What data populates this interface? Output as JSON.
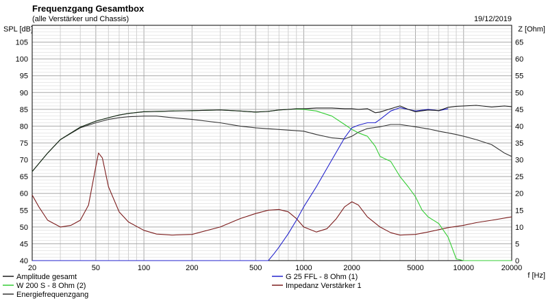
{
  "header": {
    "title": "Frequenzgang Gesamtbox",
    "subtitle": "(alle Verstärker und Chassis)",
    "date": "19/12/2019"
  },
  "chart_data": {
    "type": "line",
    "title": "Frequenzgang Gesamtbox",
    "xlabel": "f [Hz]",
    "ylabel_left": "SPL [dB]",
    "ylabel_right": "Z [Ohm]",
    "xscale": "log",
    "xlim": [
      20,
      20000
    ],
    "ylim_left": [
      40,
      110
    ],
    "ylim_right": [
      0,
      70
    ],
    "grid": true,
    "x_ticks": [
      "20",
      "50",
      "100",
      "200",
      "500",
      "1000",
      "2000",
      "5000",
      "10000",
      "20000"
    ],
    "y_left_ticks": [
      "105",
      "100",
      "95",
      "90",
      "85",
      "80",
      "75",
      "70",
      "65",
      "60",
      "55",
      "50",
      "45",
      "40"
    ],
    "y_right_ticks": [
      "65",
      "60",
      "55",
      "50",
      "45",
      "40",
      "35",
      "30",
      "25",
      "20",
      "15",
      "10",
      "5",
      "0"
    ],
    "colors": {
      "amplitude": "#1a1a1a",
      "woofer": "#33cc33",
      "energy": "#333333",
      "tweeter": "#2222cc",
      "impedance": "#7a1a1a",
      "grid": "#d0d0d0",
      "grid_major": "#a8a8a8"
    },
    "series": [
      {
        "key": "amplitude",
        "name": "Amplitude gesamt",
        "axis": "left",
        "x": [
          20,
          25,
          30,
          40,
          50,
          60,
          70,
          80,
          100,
          150,
          200,
          300,
          400,
          500,
          600,
          700,
          800,
          900,
          1000,
          1200,
          1500,
          1800,
          2000,
          2200,
          2500,
          2800,
          3000,
          3500,
          4000,
          4500,
          5000,
          6000,
          7000,
          8000,
          9000,
          10000,
          12000,
          15000,
          18000,
          20000
        ],
        "y": [
          66.5,
          72.0,
          76.0,
          79.7,
          81.5,
          82.5,
          83.3,
          83.8,
          84.3,
          84.5,
          84.6,
          84.8,
          84.5,
          84.2,
          84.4,
          84.8,
          85.0,
          85.2,
          85.2,
          85.4,
          85.4,
          85.2,
          85.2,
          85.0,
          85.2,
          84.0,
          84.2,
          85.2,
          86.0,
          85.0,
          84.3,
          84.8,
          84.6,
          85.6,
          85.9,
          86.0,
          86.2,
          85.7,
          86.0,
          85.8
        ]
      },
      {
        "key": "woofer",
        "name": "W 200 S - 8 Ohm (2)",
        "axis": "left",
        "x": [
          20,
          25,
          30,
          40,
          50,
          60,
          70,
          80,
          100,
          150,
          200,
          300,
          400,
          500,
          600,
          700,
          800,
          900,
          1000,
          1200,
          1500,
          1800,
          2000,
          2200,
          2500,
          2800,
          3000,
          3500,
          4000,
          4500,
          5000,
          5500,
          6000,
          7000,
          8000,
          9000,
          10000,
          12000,
          15000,
          20000
        ],
        "y": [
          66.5,
          72.0,
          76.0,
          79.7,
          81.5,
          82.5,
          83.3,
          83.8,
          84.3,
          84.5,
          84.6,
          84.8,
          84.5,
          84.2,
          84.4,
          84.8,
          85.0,
          85.1,
          85.0,
          84.5,
          83.0,
          80.5,
          79.0,
          78.0,
          77.0,
          74.0,
          71.0,
          69.5,
          65.0,
          62.0,
          59.0,
          55.0,
          53.0,
          51.0,
          47.0,
          40.5,
          40.0,
          40.0,
          40.0,
          40.0
        ]
      },
      {
        "key": "energy",
        "name": "Energiefrequenzgang",
        "axis": "left",
        "x": [
          20,
          25,
          30,
          40,
          50,
          60,
          70,
          80,
          100,
          120,
          150,
          200,
          300,
          400,
          500,
          700,
          1000,
          1200,
          1500,
          1800,
          2000,
          2200,
          2500,
          3000,
          3500,
          4000,
          5000,
          6000,
          7000,
          8000,
          9000,
          10000,
          12000,
          15000,
          18000,
          20000
        ],
        "y": [
          66.5,
          72.0,
          76.0,
          79.5,
          81.0,
          82.0,
          82.5,
          82.8,
          83.0,
          83.0,
          82.5,
          82.0,
          81.0,
          80.0,
          79.5,
          79.0,
          78.5,
          77.5,
          76.5,
          76.2,
          77.0,
          78.2,
          79.3,
          79.8,
          80.5,
          80.5,
          79.8,
          79.2,
          78.5,
          78.0,
          77.5,
          77.0,
          76.0,
          74.5,
          72.0,
          71.0
        ]
      },
      {
        "key": "tweeter",
        "name": "G 25 FFL - 8 Ohm (1)",
        "axis": "left",
        "x": [
          20,
          100,
          300,
          600,
          650,
          700,
          800,
          900,
          1000,
          1200,
          1500,
          1800,
          2000,
          2200,
          2500,
          2800,
          3000,
          3500,
          4000,
          4500,
          5000,
          6000,
          7000,
          8000
        ],
        "y": [
          40.0,
          40.0,
          40.0,
          40.0,
          42.0,
          44.0,
          48.0,
          52.0,
          56.0,
          62.0,
          70.0,
          76.5,
          79.5,
          80.3,
          81.0,
          81.0,
          82.0,
          84.5,
          85.5,
          85.0,
          84.5,
          85.0,
          84.6,
          85.2
        ]
      },
      {
        "key": "impedance",
        "name": "Impedanz Verstärker 1",
        "axis": "right",
        "x": [
          20,
          22,
          25,
          30,
          35,
          40,
          45,
          50,
          52,
          55,
          60,
          70,
          80,
          100,
          120,
          150,
          200,
          300,
          400,
          500,
          600,
          700,
          800,
          900,
          1000,
          1200,
          1400,
          1600,
          1800,
          2000,
          2200,
          2500,
          3000,
          3500,
          4000,
          5000,
          6000,
          7000,
          8000,
          10000,
          12000,
          15000,
          20000
        ],
        "y": [
          19.5,
          16.0,
          12.0,
          10.0,
          10.5,
          12.0,
          16.5,
          28.0,
          32.0,
          30.5,
          22.0,
          14.5,
          11.5,
          9.0,
          7.9,
          7.6,
          7.8,
          10.0,
          12.5,
          14.0,
          15.0,
          15.2,
          14.5,
          12.5,
          10.0,
          8.5,
          9.5,
          12.5,
          16.0,
          17.5,
          16.5,
          13.0,
          10.0,
          8.3,
          7.6,
          7.8,
          8.5,
          9.2,
          9.8,
          10.5,
          11.3,
          12.0,
          13.0
        ]
      }
    ],
    "legend": [
      {
        "key": "amplitude",
        "label": "Amplitude gesamt"
      },
      {
        "key": "woofer",
        "label": "W 200 S - 8 Ohm (2)"
      },
      {
        "key": "energy",
        "label": "Energiefrequenzgang"
      },
      {
        "key": "tweeter",
        "label": "G 25 FFL - 8 Ohm (1)"
      },
      {
        "key": "impedance",
        "label": "Impedanz Verstärker 1"
      }
    ]
  }
}
